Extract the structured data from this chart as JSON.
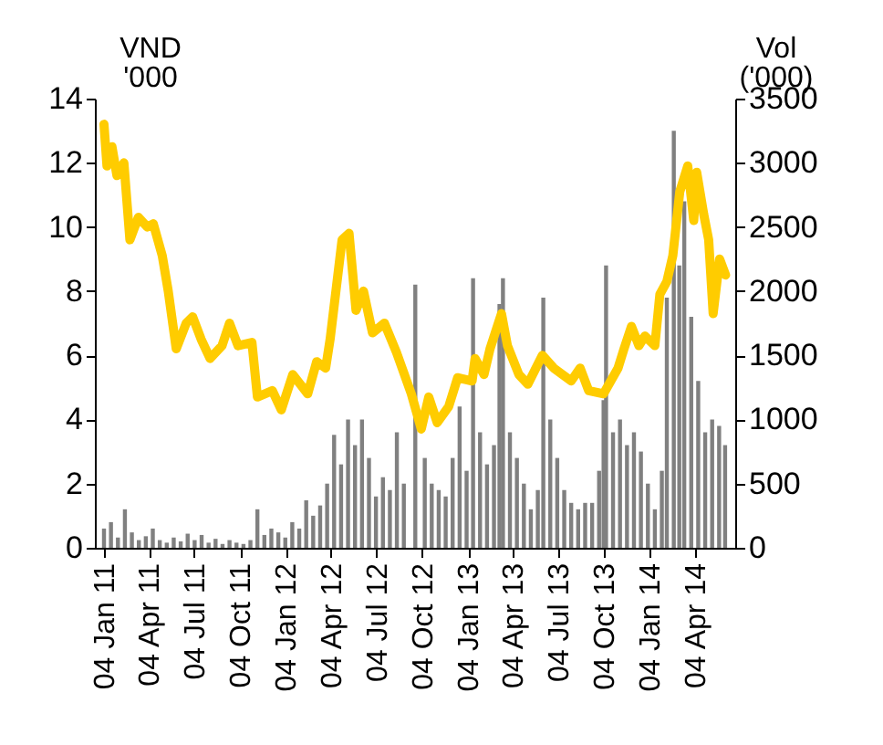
{
  "chart_data": {
    "type": "line",
    "ylabel": "VND\n'000",
    "y2label": "Vol\n('000)",
    "grid": false,
    "xlim": [
      "2011-01-04",
      "2014-06-06"
    ],
    "xticks": [
      {
        "value": "2011-01-04",
        "label": "04 Jan 11"
      },
      {
        "value": "2011-04-04",
        "label": "04 Apr 11"
      },
      {
        "value": "2011-07-04",
        "label": "04 Jul 11"
      },
      {
        "value": "2011-10-04",
        "label": "04 Oct 11"
      },
      {
        "value": "2012-01-04",
        "label": "04 Jan 12"
      },
      {
        "value": "2012-04-04",
        "label": "04 Apr 12"
      },
      {
        "value": "2012-07-04",
        "label": "04 Jul 12"
      },
      {
        "value": "2012-10-04",
        "label": "04 Oct 12"
      },
      {
        "value": "2013-01-04",
        "label": "04 Jan 13"
      },
      {
        "value": "2013-04-04",
        "label": "04 Apr 13"
      },
      {
        "value": "2013-07-04",
        "label": "04 Jul 13"
      },
      {
        "value": "2013-10-04",
        "label": "04 Oct 13"
      },
      {
        "value": "2014-01-04",
        "label": "04 Jan 14"
      },
      {
        "value": "2014-04-04",
        "label": "04 Apr 14"
      }
    ],
    "ylim": [
      0,
      14
    ],
    "yticks": [
      0,
      2,
      4,
      6,
      8,
      10,
      12,
      14
    ],
    "y2lim": [
      0,
      3500
    ],
    "y2ticks": [
      0,
      500,
      1000,
      1500,
      2000,
      2500,
      3000,
      3500
    ],
    "series": [
      {
        "type": "bar",
        "axis": "y2",
        "color": "#808080",
        "x": [
          "2011-01-04",
          "2011-01-18",
          "2011-02-01",
          "2011-02-15",
          "2011-03-01",
          "2011-03-15",
          "2011-03-29",
          "2011-04-12",
          "2011-04-26",
          "2011-05-10",
          "2011-05-24",
          "2011-06-07",
          "2011-06-21",
          "2011-07-05",
          "2011-07-19",
          "2011-08-02",
          "2011-08-16",
          "2011-08-30",
          "2011-09-13",
          "2011-09-27",
          "2011-10-11",
          "2011-10-25",
          "2011-11-08",
          "2011-11-22",
          "2011-12-06",
          "2011-12-20",
          "2012-01-03",
          "2012-01-17",
          "2012-01-31",
          "2012-02-14",
          "2012-02-28",
          "2012-03-13",
          "2012-03-27",
          "2012-04-10",
          "2012-04-24",
          "2012-05-08",
          "2012-05-22",
          "2012-06-05",
          "2012-06-19",
          "2012-07-03",
          "2012-07-17",
          "2012-07-31",
          "2012-08-14",
          "2012-08-28",
          "2012-09-20",
          "2012-10-09",
          "2012-10-23",
          "2012-11-06",
          "2012-11-20",
          "2012-12-04",
          "2012-12-18",
          "2013-01-01",
          "2013-01-14",
          "2013-01-28",
          "2013-02-11",
          "2013-02-25",
          "2013-03-08",
          "2013-03-15",
          "2013-03-29",
          "2013-04-12",
          "2013-04-26",
          "2013-05-10",
          "2013-05-24",
          "2013-06-04",
          "2013-06-18",
          "2013-07-02",
          "2013-07-16",
          "2013-07-30",
          "2013-08-13",
          "2013-08-27",
          "2013-09-10",
          "2013-09-24",
          "2013-10-03",
          "2013-10-08",
          "2013-10-22",
          "2013-11-05",
          "2013-11-19",
          "2013-12-03",
          "2013-12-17",
          "2013-12-31",
          "2014-01-14",
          "2014-01-28",
          "2014-02-07",
          "2014-02-21",
          "2014-03-04",
          "2014-03-14",
          "2014-03-28",
          "2014-04-11",
          "2014-04-25",
          "2014-05-09",
          "2014-05-23",
          "2014-06-04"
        ],
        "values": [
          150,
          200,
          80,
          300,
          120,
          60,
          90,
          150,
          60,
          40,
          80,
          50,
          110,
          60,
          100,
          40,
          70,
          30,
          60,
          40,
          30,
          60,
          300,
          100,
          150,
          120,
          80,
          200,
          150,
          370,
          250,
          330,
          500,
          880,
          650,
          1000,
          800,
          1000,
          700,
          400,
          550,
          450,
          900,
          500,
          2050,
          700,
          500,
          450,
          400,
          700,
          1100,
          600,
          2100,
          900,
          650,
          800,
          1900,
          2100,
          900,
          700,
          500,
          300,
          450,
          1950,
          1000,
          700,
          450,
          350,
          300,
          350,
          350,
          600,
          1150,
          2200,
          900,
          1000,
          800,
          900,
          750,
          500,
          300,
          600,
          1950,
          3250,
          2200,
          2700,
          1800,
          1300,
          900,
          1000,
          950,
          800
        ]
      },
      {
        "color": "#ffcc00",
        "x": [
          "2011-01-04",
          "2011-01-10",
          "2011-01-20",
          "2011-01-30",
          "2011-02-13",
          "2011-02-25",
          "2011-03-14",
          "2011-04-01",
          "2011-04-13",
          "2011-05-01",
          "2011-05-13",
          "2011-05-29",
          "2011-06-18",
          "2011-07-01",
          "2011-07-18",
          "2011-08-05",
          "2011-08-29",
          "2011-09-13",
          "2011-09-30",
          "2011-10-28",
          "2011-11-08",
          "2011-12-08",
          "2011-12-26",
          "2012-01-18",
          "2012-02-17",
          "2012-03-06",
          "2012-03-24",
          "2012-04-02",
          "2012-04-26",
          "2012-05-10",
          "2012-05-24",
          "2012-06-08",
          "2012-06-26",
          "2012-07-20",
          "2012-08-13",
          "2012-09-12",
          "2012-10-02",
          "2012-10-17",
          "2012-11-03",
          "2012-11-26",
          "2012-12-14",
          "2013-01-12",
          "2013-01-18",
          "2013-02-05",
          "2013-02-17",
          "2013-03-12",
          "2013-03-24",
          "2013-04-16",
          "2013-05-04",
          "2013-06-02",
          "2013-06-25",
          "2013-07-30",
          "2013-08-17",
          "2013-09-03",
          "2013-10-03",
          "2013-11-01",
          "2013-11-13",
          "2013-11-28",
          "2013-12-13",
          "2013-12-25",
          "2014-01-14",
          "2014-01-24",
          "2014-02-07",
          "2014-02-19",
          "2014-03-05",
          "2014-03-21",
          "2014-04-02",
          "2014-04-08",
          "2014-04-22",
          "2014-05-02",
          "2014-05-11",
          "2014-05-24",
          "2014-06-05"
        ],
        "values": [
          13.2,
          11.9,
          12.5,
          11.6,
          12.0,
          9.6,
          10.3,
          10.0,
          10.1,
          9.1,
          8.0,
          6.2,
          7.0,
          7.2,
          6.5,
          5.9,
          6.3,
          7.0,
          6.3,
          6.4,
          4.7,
          4.9,
          4.3,
          5.4,
          4.8,
          5.8,
          5.6,
          6.5,
          9.6,
          9.8,
          7.4,
          8.0,
          6.7,
          7.0,
          6.1,
          4.8,
          3.7,
          4.7,
          3.9,
          4.4,
          5.3,
          5.2,
          5.9,
          5.4,
          6.2,
          7.3,
          6.3,
          5.4,
          5.1,
          6.0,
          5.6,
          5.2,
          5.6,
          4.9,
          4.8,
          5.6,
          6.2,
          6.9,
          6.3,
          6.6,
          6.3,
          7.9,
          8.3,
          9.1,
          11.1,
          11.9,
          10.2,
          11.7,
          10.4,
          9.6,
          7.3,
          9.0,
          8.5
        ]
      }
    ]
  }
}
